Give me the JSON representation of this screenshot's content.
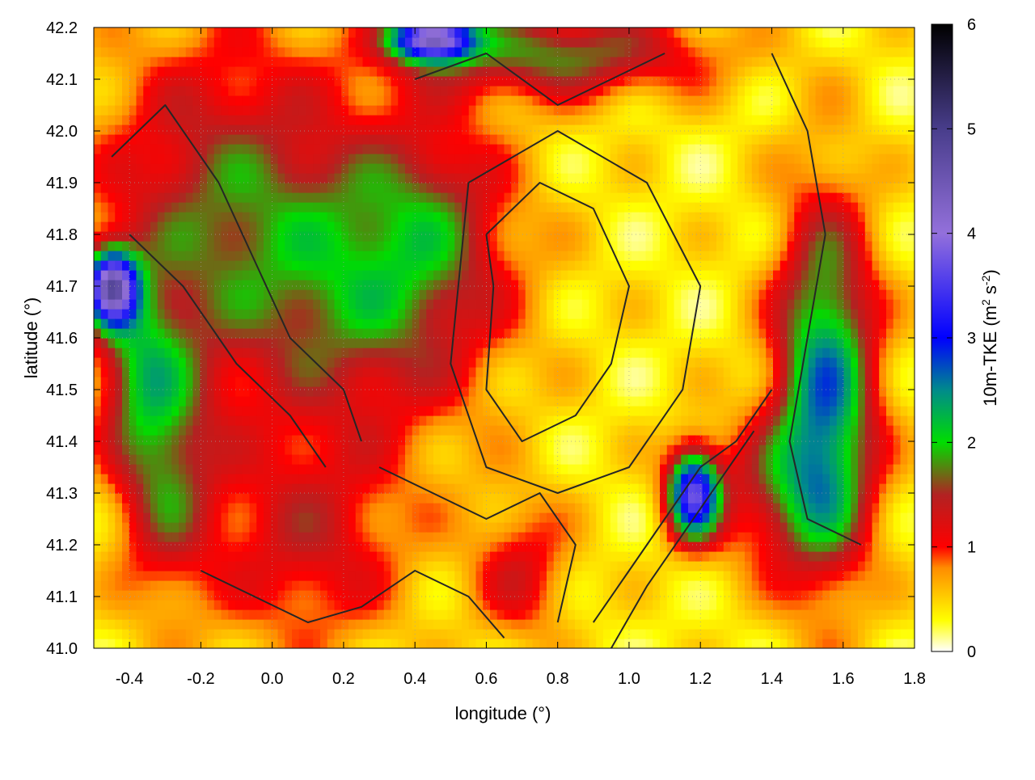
{
  "chart_data": {
    "type": "heatmap",
    "title": "",
    "xlabel": "longitude (°)",
    "ylabel": "latitude (°)",
    "xlim": [
      -0.5,
      1.8
    ],
    "ylim": [
      41.0,
      42.2
    ],
    "x_ticks": [
      "-0.4",
      "-0.2",
      "0.0",
      "0.2",
      "0.4",
      "0.6",
      "0.8",
      "1.0",
      "1.2",
      "1.4",
      "1.6",
      "1.8"
    ],
    "x_tick_values": [
      -0.4,
      -0.2,
      0.0,
      0.2,
      0.4,
      0.6,
      0.8,
      1.0,
      1.2,
      1.4,
      1.6,
      1.8
    ],
    "y_ticks": [
      "41.0",
      "41.1",
      "41.2",
      "41.3",
      "41.4",
      "41.5",
      "41.6",
      "41.7",
      "41.8",
      "41.9",
      "42.0",
      "42.1",
      "42.2"
    ],
    "y_tick_values": [
      41.0,
      41.1,
      41.2,
      41.3,
      41.4,
      41.5,
      41.6,
      41.7,
      41.8,
      41.9,
      42.0,
      42.1,
      42.2
    ],
    "grid": true,
    "colorbar": {
      "label_main": "10m-TKE (m",
      "label_sup1": "2",
      "label_mid": " s",
      "label_sup2": "-2",
      "label_end": ")",
      "range": [
        0,
        6
      ],
      "ticks": [
        "0",
        "1",
        "2",
        "3",
        "4",
        "5",
        "6"
      ],
      "tick_values": [
        0,
        1,
        2,
        3,
        4,
        5,
        6
      ],
      "stops": [
        {
          "v": 0.0,
          "c": "#ffffff"
        },
        {
          "v": 0.3,
          "c": "#ffff00"
        },
        {
          "v": 0.8,
          "c": "#ff8c00"
        },
        {
          "v": 1.0,
          "c": "#ff0000"
        },
        {
          "v": 1.5,
          "c": "#b22222"
        },
        {
          "v": 2.0,
          "c": "#00dd00"
        },
        {
          "v": 2.5,
          "c": "#008b8b"
        },
        {
          "v": 3.0,
          "c": "#0000ff"
        },
        {
          "v": 4.0,
          "c": "#9370db"
        },
        {
          "v": 5.0,
          "c": "#483d8b"
        },
        {
          "v": 6.0,
          "c": "#000000"
        }
      ]
    },
    "field_blobs": [
      {
        "x": -0.3,
        "y": 41.35,
        "sx": 0.1,
        "sy": 0.18,
        "a": 1.2
      },
      {
        "x": -0.15,
        "y": 41.85,
        "sx": 0.25,
        "sy": 0.25,
        "a": 1.2
      },
      {
        "x": 0.3,
        "y": 41.7,
        "sx": 0.25,
        "sy": 0.2,
        "a": 1.3
      },
      {
        "x": 0.45,
        "y": 41.85,
        "sx": 0.15,
        "sy": 0.15,
        "a": 0.6
      },
      {
        "x": -0.45,
        "y": 41.7,
        "sx": 0.05,
        "sy": 0.05,
        "a": 3.5
      },
      {
        "x": -0.38,
        "y": 41.55,
        "sx": 0.08,
        "sy": 0.12,
        "a": 0.9
      },
      {
        "x": 1.55,
        "y": 41.5,
        "sx": 0.1,
        "sy": 0.25,
        "a": 2.2
      },
      {
        "x": 1.18,
        "y": 41.3,
        "sx": 0.05,
        "sy": 0.06,
        "a": 3.0
      },
      {
        "x": 0.8,
        "y": 42.15,
        "sx": 0.3,
        "sy": 0.06,
        "a": 1.4
      },
      {
        "x": 0.45,
        "y": 42.18,
        "sx": 0.08,
        "sy": 0.03,
        "a": 3.5
      },
      {
        "x": 0.1,
        "y": 41.2,
        "sx": 0.2,
        "sy": 0.15,
        "a": 0.9
      },
      {
        "x": 1.4,
        "y": 41.3,
        "sx": 0.15,
        "sy": 0.1,
        "a": 0.9
      },
      {
        "x": 0.7,
        "y": 41.15,
        "sx": 0.1,
        "sy": 0.1,
        "a": 0.8
      }
    ],
    "field_base": 0.35,
    "contours": [
      [
        [
          -0.45,
          41.95
        ],
        [
          -0.3,
          42.05
        ],
        [
          -0.15,
          41.9
        ],
        [
          -0.05,
          41.75
        ],
        [
          0.05,
          41.6
        ],
        [
          0.2,
          41.5
        ],
        [
          0.25,
          41.4
        ]
      ],
      [
        [
          -0.4,
          41.8
        ],
        [
          -0.25,
          41.7
        ],
        [
          -0.1,
          41.55
        ],
        [
          0.05,
          41.45
        ],
        [
          0.15,
          41.35
        ]
      ],
      [
        [
          0.6,
          41.8
        ],
        [
          0.75,
          41.9
        ],
        [
          0.9,
          41.85
        ],
        [
          1.0,
          41.7
        ],
        [
          0.95,
          41.55
        ],
        [
          0.85,
          41.45
        ],
        [
          0.7,
          41.4
        ],
        [
          0.6,
          41.5
        ],
        [
          0.62,
          41.7
        ],
        [
          0.6,
          41.8
        ]
      ],
      [
        [
          0.55,
          41.9
        ],
        [
          0.8,
          42.0
        ],
        [
          1.05,
          41.9
        ],
        [
          1.2,
          41.7
        ],
        [
          1.15,
          41.5
        ],
        [
          1.0,
          41.35
        ],
        [
          0.8,
          41.3
        ],
        [
          0.6,
          41.35
        ],
        [
          0.5,
          41.55
        ],
        [
          0.55,
          41.9
        ]
      ],
      [
        [
          0.4,
          42.1
        ],
        [
          0.6,
          42.15
        ],
        [
          0.8,
          42.05
        ],
        [
          0.95,
          42.1
        ],
        [
          1.1,
          42.15
        ]
      ],
      [
        [
          0.9,
          41.05
        ],
        [
          1.0,
          41.15
        ],
        [
          1.1,
          41.25
        ],
        [
          1.2,
          41.35
        ],
        [
          1.3,
          41.4
        ],
        [
          1.4,
          41.5
        ]
      ],
      [
        [
          0.95,
          41.0
        ],
        [
          1.05,
          41.12
        ],
        [
          1.15,
          41.22
        ],
        [
          1.25,
          41.32
        ],
        [
          1.35,
          41.42
        ]
      ],
      [
        [
          1.4,
          42.15
        ],
        [
          1.5,
          42.0
        ],
        [
          1.55,
          41.8
        ],
        [
          1.5,
          41.6
        ],
        [
          1.45,
          41.4
        ],
        [
          1.5,
          41.25
        ],
        [
          1.65,
          41.2
        ]
      ],
      [
        [
          -0.2,
          41.15
        ],
        [
          -0.05,
          41.1
        ],
        [
          0.1,
          41.05
        ],
        [
          0.25,
          41.08
        ],
        [
          0.4,
          41.15
        ],
        [
          0.55,
          41.1
        ],
        [
          0.65,
          41.02
        ]
      ],
      [
        [
          0.3,
          41.35
        ],
        [
          0.45,
          41.3
        ],
        [
          0.6,
          41.25
        ],
        [
          0.75,
          41.3
        ],
        [
          0.85,
          41.2
        ],
        [
          0.8,
          41.05
        ]
      ]
    ]
  }
}
